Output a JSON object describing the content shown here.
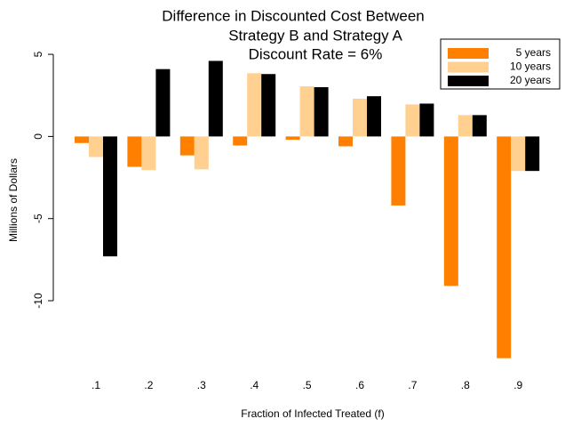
{
  "chart_data": {
    "type": "bar",
    "title": [
      "Difference in Discounted Cost Between",
      "Strategy B and Strategy A",
      "Discount Rate = 6%"
    ],
    "x_label": "Fraction of Infected Treated (f)",
    "y_label": "Millions of Dollars",
    "categories": [
      ".1",
      ".2",
      ".3",
      ".4",
      ".5",
      ".6",
      ".7",
      ".8",
      ".9"
    ],
    "series": [
      {
        "name": "5 years",
        "color": "#ff8000",
        "values": [
          -0.4,
          -1.85,
          -1.15,
          -0.55,
          -0.2,
          -0.6,
          -4.2,
          -9.1,
          -13.5
        ]
      },
      {
        "name": "10 years",
        "color": "#ffd090",
        "values": [
          -1.25,
          -2.05,
          -2.0,
          3.85,
          3.05,
          2.3,
          1.95,
          1.3,
          -2.1
        ]
      },
      {
        "name": "20 years",
        "color": "#000000",
        "values": [
          -7.3,
          4.1,
          4.6,
          3.8,
          3.0,
          2.45,
          2.0,
          1.3,
          -2.1
        ]
      }
    ],
    "ylim": [
      -13.6,
      5.6
    ],
    "yticks": [
      5,
      0,
      -5,
      -10
    ],
    "legend": "top-right"
  }
}
